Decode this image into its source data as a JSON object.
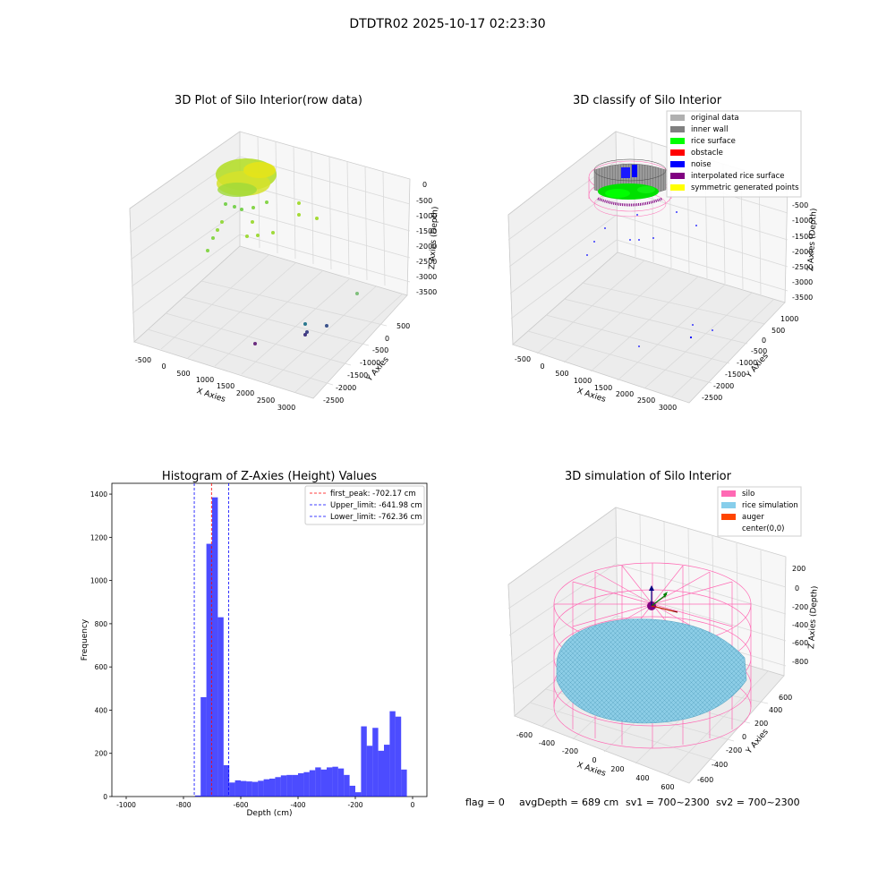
{
  "figure": {
    "suptitle": "DTDTR02 2025-10-17 02:23:30",
    "status": {
      "flag": "flag = 0",
      "avg_depth": "avgDepth = 689 cm",
      "sv1": "sv1 = 700~2300",
      "sv2": "sv2 = 700~2300"
    }
  },
  "chart_data": [
    {
      "type": "scatter",
      "projection": "3d",
      "title": "3D Plot of Silo Interior(row data)",
      "xlabel": "X Axies",
      "ylabel": "Y Axies",
      "zlabel": "Z Axies (Depth)",
      "x_ticks": [
        "-500",
        "0",
        "500",
        "1000",
        "1500",
        "2000",
        "2500",
        "3000"
      ],
      "y_ticks": [
        "500",
        "0",
        "-500",
        "-1000",
        "-1500",
        "-2000",
        "-2500"
      ],
      "z_ticks": [
        "0",
        "-500",
        "-1000",
        "-1500",
        "-2000",
        "-2500",
        "-3000",
        "-3500"
      ],
      "colormap": "viridis",
      "grid": true
    },
    {
      "type": "scatter",
      "projection": "3d",
      "title": "3D classify of Silo Interior",
      "xlabel": "X Axies",
      "ylabel": "Y Axies",
      "zlabel": "Z Axies (Depth)",
      "x_ticks": [
        "-500",
        "0",
        "500",
        "1000",
        "1500",
        "2000",
        "2500",
        "3000"
      ],
      "y_ticks": [
        "1000",
        "500",
        "0",
        "-500",
        "-1000",
        "-1500",
        "-2000",
        "-2500"
      ],
      "z_ticks": [
        "-500",
        "-1000",
        "-1500",
        "-2000",
        "-2500",
        "-3000",
        "-3500"
      ],
      "legend": {
        "placement": "top-right",
        "entries": [
          {
            "label": "original data",
            "color": "#b0b0b0"
          },
          {
            "label": "inner wall",
            "color": "#808080"
          },
          {
            "label": "rice surface",
            "color": "#00ff00"
          },
          {
            "label": "obstacle",
            "color": "#ff0000"
          },
          {
            "label": "noise",
            "color": "#0000ff"
          },
          {
            "label": "interpolated rice surface",
            "color": "#800080"
          },
          {
            "label": "symmetric generated points",
            "color": "#ffff00"
          }
        ]
      },
      "grid": true
    },
    {
      "type": "bar",
      "title": "Histogram of Z-Axies (Height) Values",
      "xlabel": "Depth (cm)",
      "ylabel": "Frequency",
      "xlim": [
        -1050,
        50
      ],
      "ylim": [
        0,
        1450
      ],
      "x_ticks": [
        -1000,
        -800,
        -600,
        -400,
        -200,
        0
      ],
      "y_ticks": [
        0,
        200,
        400,
        600,
        800,
        1000,
        1200,
        1400
      ],
      "bin_width": 20,
      "bar_color": "#0000ff",
      "bins": [
        {
          "start": -760,
          "count": 5
        },
        {
          "start": -740,
          "count": 460
        },
        {
          "start": -720,
          "count": 1170
        },
        {
          "start": -700,
          "count": 1385
        },
        {
          "start": -680,
          "count": 830
        },
        {
          "start": -660,
          "count": 145
        },
        {
          "start": -640,
          "count": 65
        },
        {
          "start": -620,
          "count": 75
        },
        {
          "start": -600,
          "count": 72
        },
        {
          "start": -580,
          "count": 70
        },
        {
          "start": -560,
          "count": 68
        },
        {
          "start": -540,
          "count": 73
        },
        {
          "start": -520,
          "count": 80
        },
        {
          "start": -500,
          "count": 83
        },
        {
          "start": -480,
          "count": 90
        },
        {
          "start": -460,
          "count": 98
        },
        {
          "start": -440,
          "count": 100
        },
        {
          "start": -420,
          "count": 100
        },
        {
          "start": -400,
          "count": 108
        },
        {
          "start": -380,
          "count": 113
        },
        {
          "start": -360,
          "count": 122
        },
        {
          "start": -340,
          "count": 135
        },
        {
          "start": -320,
          "count": 125
        },
        {
          "start": -300,
          "count": 135
        },
        {
          "start": -280,
          "count": 138
        },
        {
          "start": -260,
          "count": 130
        },
        {
          "start": -240,
          "count": 100
        },
        {
          "start": -220,
          "count": 50
        },
        {
          "start": -200,
          "count": 20
        },
        {
          "start": -180,
          "count": 325
        },
        {
          "start": -160,
          "count": 235
        },
        {
          "start": -140,
          "count": 318
        },
        {
          "start": -120,
          "count": 212
        },
        {
          "start": -100,
          "count": 240
        },
        {
          "start": -80,
          "count": 395
        },
        {
          "start": -60,
          "count": 370
        },
        {
          "start": -40,
          "count": 125
        }
      ],
      "lines": [
        {
          "label": "first_peak: -702.17 cm",
          "x": -702.17,
          "color": "#ff0000"
        },
        {
          "label": "Upper_limit: -641.98 cm",
          "x": -641.98,
          "color": "#0000ff"
        },
        {
          "label": "Lower_limit: -762.36 cm",
          "x": -762.36,
          "color": "#0000ff"
        }
      ],
      "legend": {
        "placement": "top-right"
      }
    },
    {
      "type": "scatter",
      "projection": "3d",
      "title": "3D simulation of Silo Interior",
      "xlabel": "X Axies",
      "ylabel": "Y Axies",
      "zlabel": "Z Axies (Depth)",
      "x_ticks": [
        "-600",
        "-400",
        "-200",
        "0",
        "200",
        "400",
        "600"
      ],
      "y_ticks": [
        "600",
        "400",
        "200",
        "0",
        "-200",
        "-400",
        "-600"
      ],
      "z_ticks": [
        "200",
        "0",
        "-200",
        "-400",
        "-600",
        "-800"
      ],
      "legend": {
        "placement": "top-right",
        "entries": [
          {
            "label": "silo",
            "color": "#ff69b4"
          },
          {
            "label": "rice simulation",
            "color": "#87ceeb"
          },
          {
            "label": "auger",
            "color": "#ff4500"
          },
          {
            "label": "center(0,0)",
            "color": "#ffffff"
          }
        ]
      },
      "grid": true
    }
  ]
}
